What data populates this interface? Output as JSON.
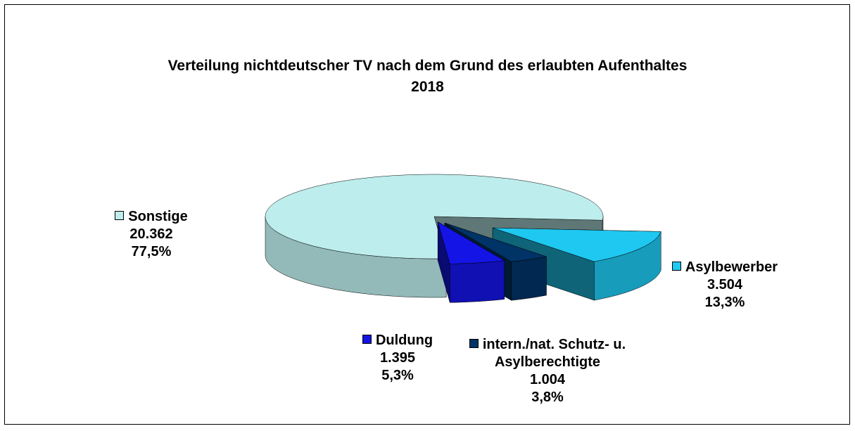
{
  "chart_data": {
    "type": "pie3d",
    "title": "Verteilung nichtdeutscher TV nach dem Grund des erlaubten Aufenthaltes",
    "subtitle": "2018",
    "categories": [
      "Asylbewerber",
      "intern./nat. Schutz- u. Asylberechtigte",
      "Duldung",
      "Sonstige"
    ],
    "values": [
      3504,
      1004,
      1395,
      20362
    ],
    "value_labels": [
      "3.504",
      "1.004",
      "1.395",
      "20.362"
    ],
    "shares": [
      13.3,
      3.8,
      5.3,
      77.5
    ],
    "share_labels": [
      "13,3%",
      "3,8%",
      "5,3%",
      "77,5%"
    ],
    "colors": [
      "#1ec8f0",
      "#003366",
      "#1414e6",
      "#bdeded"
    ]
  }
}
